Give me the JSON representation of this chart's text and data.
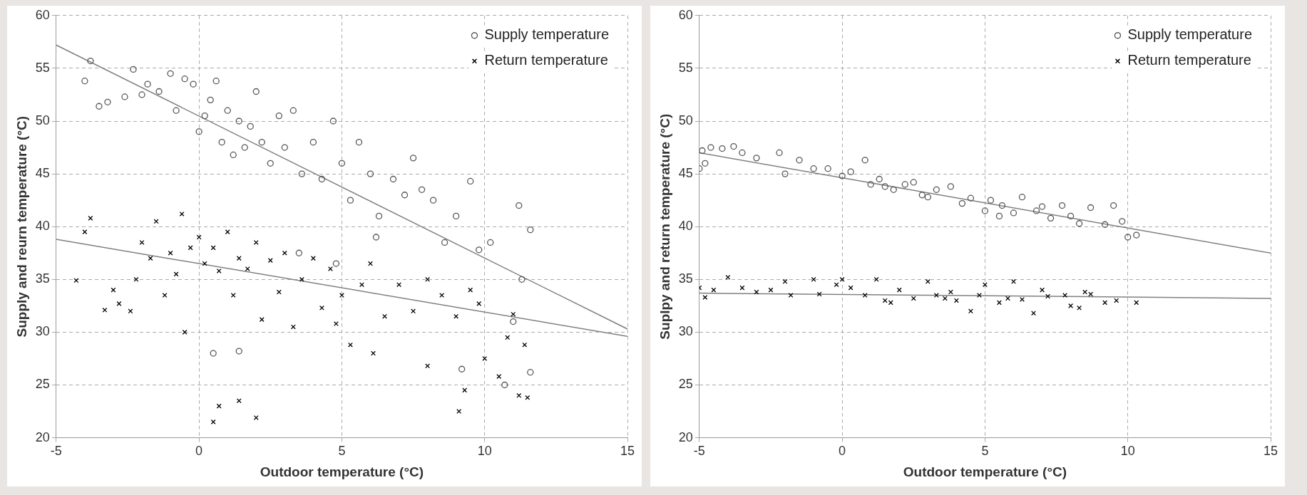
{
  "chart_data": [
    {
      "type": "scatter",
      "xlabel": "Outdoor temperature (°C)",
      "ylabel": "Supply and reurn temperature (°C)",
      "xlim": [
        -5,
        15
      ],
      "xticks": [
        -5,
        0,
        5,
        10,
        15
      ],
      "ylim": [
        20,
        60
      ],
      "yticks": [
        20,
        25,
        30,
        35,
        40,
        45,
        50,
        55,
        60
      ],
      "grid": true,
      "legend": "top right",
      "series": [
        {
          "name": "Supply temperature",
          "color": "#555555",
          "marker": "circle",
          "x": [
            -4,
            -3.8,
            -3.5,
            -3.2,
            -2.6,
            -2.3,
            -2,
            -1.8,
            -1.4,
            -1,
            -0.8,
            -0.5,
            -0.2,
            0,
            0.2,
            0.4,
            0.6,
            0.8,
            1,
            1.2,
            1.4,
            1.6,
            1.8,
            2,
            2.2,
            2.5,
            2.8,
            3,
            3.3,
            3.6,
            4,
            4.3,
            4.7,
            5,
            5.3,
            5.6,
            6,
            6.3,
            6.8,
            7.2,
            7.5,
            7.8,
            8.2,
            8.6,
            9,
            9.5,
            9.8,
            10.2,
            11.2,
            11.6,
            11.3,
            11,
            10.7,
            11.6,
            1.4,
            0.5,
            6.2,
            9.2,
            4.8,
            3.5
          ],
          "values": [
            53.8,
            55.7,
            51.4,
            51.8,
            52.3,
            54.9,
            52.5,
            53.5,
            52.8,
            54.5,
            51,
            54,
            53.5,
            49,
            50.5,
            52,
            53.8,
            48,
            51,
            46.8,
            50,
            47.5,
            49.5,
            52.8,
            48,
            46,
            50.5,
            47.5,
            51,
            45,
            48,
            44.5,
            50,
            46,
            42.5,
            48,
            45,
            41,
            44.5,
            43,
            46.5,
            43.5,
            42.5,
            38.5,
            41,
            44.3,
            37.8,
            38.5,
            42,
            39.7,
            35,
            31,
            25,
            26.2,
            28.2,
            28,
            39,
            26.5,
            36.5,
            37.5
          ]
        },
        {
          "name": "Return temperature",
          "color": "#000000",
          "marker": "cross",
          "x": [
            -4.3,
            -3.8,
            -4,
            -3.3,
            -3,
            -2.8,
            -2.4,
            -2.2,
            -2,
            -1.7,
            -1.5,
            -1.2,
            -1,
            -0.8,
            -0.6,
            -0.5,
            -0.3,
            0,
            0.2,
            0.5,
            0.7,
            1,
            1.2,
            1.4,
            1.7,
            2,
            2.2,
            2.5,
            2.8,
            3,
            3.3,
            3.6,
            4,
            4.3,
            4.6,
            5,
            5.3,
            5.7,
            6,
            6.5,
            7,
            7.5,
            8,
            8.5,
            8,
            9,
            9.5,
            9.8,
            9.3,
            10,
            10.5,
            10.8,
            11.2,
            11.5,
            11,
            11.4,
            9.1,
            0.5,
            0.7,
            1.4,
            2,
            6.1,
            4.8
          ],
          "values": [
            34.9,
            40.8,
            39.5,
            32.1,
            34,
            32.7,
            32,
            35,
            38.5,
            37,
            40.5,
            33.5,
            37.5,
            35.5,
            41.2,
            30,
            38,
            39,
            36.5,
            38,
            35.8,
            39.5,
            33.5,
            37,
            36,
            38.5,
            31.2,
            36.8,
            33.8,
            37.5,
            30.5,
            35,
            37,
            32.3,
            36,
            33.5,
            28.8,
            34.5,
            36.5,
            31.5,
            34.5,
            32,
            35,
            33.5,
            26.8,
            31.5,
            34,
            32.7,
            24.5,
            27.5,
            25.8,
            29.5,
            24,
            23.8,
            31.7,
            28.8,
            22.5,
            21.5,
            23,
            23.5,
            21.9,
            28,
            30.8
          ]
        },
        {
          "type": "line",
          "color": "#808080",
          "x": [
            -5,
            15
          ],
          "values": [
            57.2,
            30.3
          ]
        },
        {
          "type": "line",
          "color": "#808080",
          "x": [
            -5,
            15
          ],
          "values": [
            38.8,
            29.6
          ]
        }
      ]
    },
    {
      "type": "scatter",
      "xlabel": "Outdoor temperature (°C)",
      "ylabel": "Suplpy and return temperature (°C)",
      "xlim": [
        -5,
        15
      ],
      "xticks": [
        -5,
        0,
        5,
        10,
        15
      ],
      "ylim": [
        20,
        60
      ],
      "yticks": [
        20,
        25,
        30,
        35,
        40,
        45,
        50,
        55,
        60
      ],
      "grid": true,
      "legend": "top right",
      "series": [
        {
          "name": "Supply temperature",
          "color": "#555555",
          "marker": "circle",
          "x": [
            -5,
            -4.9,
            -4.6,
            -4.2,
            -3.8,
            -3.5,
            -3,
            -2.2,
            -2,
            -1.5,
            -1,
            -0.5,
            0,
            0.3,
            0.8,
            1,
            1.3,
            1.8,
            2.2,
            2.5,
            3,
            3.3,
            3.8,
            4.2,
            4.5,
            5,
            5.2,
            5.6,
            6,
            6.3,
            6.8,
            7.3,
            7.7,
            8,
            8.3,
            8.7,
            9.2,
            9.5,
            9.8,
            10,
            10.3,
            5.5,
            2.8,
            -4.8,
            7,
            1.5
          ],
          "values": [
            45.5,
            47.2,
            47.5,
            47.4,
            47.6,
            47,
            46.5,
            47,
            45,
            46.3,
            45.5,
            45.5,
            44.8,
            45.2,
            46.3,
            44,
            44.5,
            43.5,
            44,
            44.2,
            42.8,
            43.5,
            43.8,
            42.2,
            42.7,
            41.5,
            42.5,
            42,
            41.3,
            42.8,
            41.5,
            40.8,
            42,
            41,
            40.3,
            41.8,
            40.2,
            42,
            40.5,
            39,
            39.2,
            41,
            43,
            46,
            41.9,
            43.8
          ]
        },
        {
          "name": "Return temperature",
          "color": "#000000",
          "marker": "cross",
          "x": [
            -5,
            -4.8,
            -4.5,
            -4,
            -3.5,
            -3,
            -2.5,
            -2,
            -1.8,
            -1,
            -0.8,
            -0.2,
            0,
            0.3,
            0.8,
            1.2,
            1.5,
            1.7,
            2,
            2.5,
            3,
            3.3,
            3.8,
            4,
            4.5,
            4.8,
            5,
            5.5,
            6,
            6.3,
            6.7,
            7,
            7.2,
            7.8,
            8,
            8.3,
            8.7,
            9.2,
            9.6,
            10.3,
            8.5,
            5.8,
            3.6
          ],
          "values": [
            34.2,
            33.3,
            34,
            35.2,
            34.2,
            33.8,
            34,
            34.8,
            33.5,
            35,
            33.6,
            34.5,
            35,
            34.2,
            33.5,
            35,
            33,
            32.8,
            34,
            33.2,
            34.8,
            33.5,
            33.8,
            33,
            32,
            33.5,
            34.5,
            32.8,
            34.8,
            33.1,
            31.8,
            34,
            33.4,
            33.5,
            32.5,
            32.3,
            33.6,
            32.8,
            33,
            32.8,
            33.8,
            33.2,
            33.2
          ]
        },
        {
          "type": "line",
          "color": "#808080",
          "x": [
            -5,
            15
          ],
          "values": [
            47,
            37.5
          ]
        },
        {
          "type": "line",
          "color": "#808080",
          "x": [
            -5,
            15
          ],
          "values": [
            33.7,
            33.2
          ]
        }
      ]
    }
  ]
}
